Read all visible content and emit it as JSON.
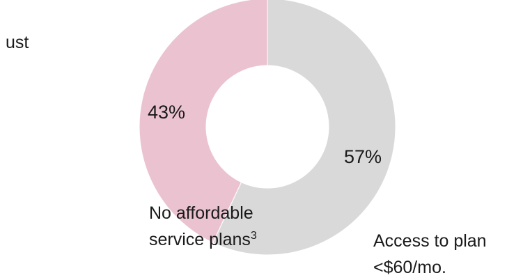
{
  "chart_data": {
    "type": "pie",
    "style": "donut",
    "values": [
      57,
      43
    ],
    "value_labels": [
      "57%",
      "43%"
    ],
    "labels": [
      "Access to plan <$60/mo.",
      "No affordable service plans3"
    ],
    "colors": [
      "#d9d9d9",
      "#ebc3d0"
    ],
    "start_angle_deg": 0,
    "direction": "clockwise"
  },
  "text": {
    "fragment": "ust",
    "slice_no_line1": "No affordable",
    "slice_no_line2": "service plans",
    "slice_no_footnote": "3",
    "slice_access_line1": "Access to plan",
    "slice_access_line2": "<$60/mo."
  }
}
